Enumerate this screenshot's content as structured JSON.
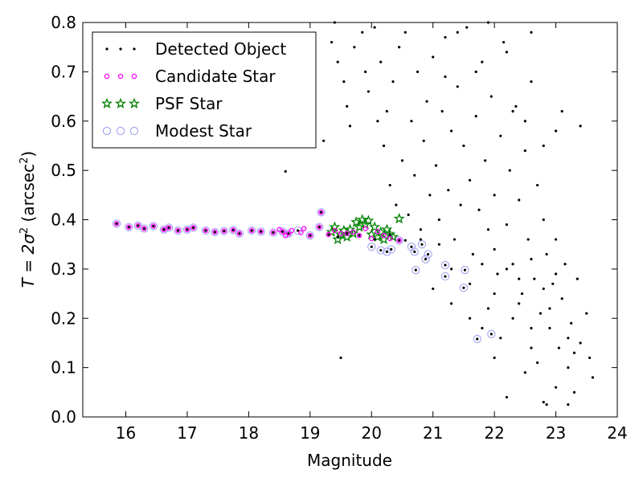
{
  "chart_data": {
    "type": "scatter",
    "xlabel": "Magnitude",
    "ylabel_prefix": "T = 2σ",
    "ylabel_suffix": " (arcsec",
    "ylabel_end": ")",
    "ylabel_superscript": "2",
    "xlim": [
      15.3,
      24.0
    ],
    "ylim": [
      0.0,
      0.8
    ],
    "xticks": [
      16,
      17,
      18,
      19,
      20,
      21,
      22,
      23,
      24
    ],
    "yticks": [
      0.0,
      0.1,
      0.2,
      0.3,
      0.4,
      0.5,
      0.6,
      0.7,
      0.8
    ],
    "ytick_labels": [
      "0.0",
      "0.1",
      "0.2",
      "0.3",
      "0.4",
      "0.5",
      "0.6",
      "0.7",
      "0.8"
    ],
    "grid": false,
    "legend_position": "top-left",
    "series": [
      {
        "name": "Detected Object",
        "marker": "dot",
        "color": "#000000",
        "points": [
          [
            15.85,
            0.392
          ],
          [
            16.05,
            0.385
          ],
          [
            16.2,
            0.388
          ],
          [
            16.3,
            0.382
          ],
          [
            16.45,
            0.387
          ],
          [
            16.62,
            0.38
          ],
          [
            16.7,
            0.384
          ],
          [
            16.85,
            0.378
          ],
          [
            17.0,
            0.38
          ],
          [
            17.1,
            0.384
          ],
          [
            17.3,
            0.378
          ],
          [
            17.45,
            0.375
          ],
          [
            17.6,
            0.377
          ],
          [
            17.75,
            0.379
          ],
          [
            17.85,
            0.372
          ],
          [
            18.05,
            0.378
          ],
          [
            18.2,
            0.376
          ],
          [
            18.4,
            0.374
          ],
          [
            18.55,
            0.376
          ],
          [
            18.65,
            0.372
          ],
          [
            18.8,
            0.378
          ],
          [
            19.0,
            0.368
          ],
          [
            19.15,
            0.385
          ],
          [
            19.18,
            0.415
          ],
          [
            19.3,
            0.37
          ],
          [
            19.45,
            0.365
          ],
          [
            19.6,
            0.372
          ],
          [
            19.8,
            0.368
          ],
          [
            20.0,
            0.345
          ],
          [
            20.05,
            0.36
          ],
          [
            20.15,
            0.338
          ],
          [
            20.25,
            0.335
          ],
          [
            20.32,
            0.34
          ],
          [
            20.45,
            0.358
          ],
          [
            20.55,
            0.358
          ],
          [
            20.65,
            0.345
          ],
          [
            20.7,
            0.335
          ],
          [
            20.72,
            0.298
          ],
          [
            20.82,
            0.35
          ],
          [
            20.88,
            0.32
          ],
          [
            20.92,
            0.33
          ],
          [
            21.2,
            0.308
          ],
          [
            21.2,
            0.285
          ],
          [
            21.5,
            0.262
          ],
          [
            21.52,
            0.298
          ],
          [
            21.72,
            0.158
          ],
          [
            21.95,
            0.168
          ],
          [
            18.6,
            0.498
          ],
          [
            19.5,
            0.12
          ],
          [
            19.22,
            0.56
          ],
          [
            19.4,
            0.8
          ],
          [
            19.35,
            0.76
          ],
          [
            19.45,
            0.72
          ],
          [
            19.55,
            0.68
          ],
          [
            19.6,
            0.63
          ],
          [
            19.65,
            0.59
          ],
          [
            19.72,
            0.75
          ],
          [
            19.85,
            0.78
          ],
          [
            19.9,
            0.7
          ],
          [
            19.95,
            0.66
          ],
          [
            20.05,
            0.79
          ],
          [
            20.1,
            0.6
          ],
          [
            20.15,
            0.72
          ],
          [
            20.2,
            0.55
          ],
          [
            20.25,
            0.62
          ],
          [
            20.3,
            0.47
          ],
          [
            20.35,
            0.68
          ],
          [
            20.4,
            0.43
          ],
          [
            20.45,
            0.75
          ],
          [
            20.5,
            0.52
          ],
          [
            20.55,
            0.78
          ],
          [
            20.6,
            0.41
          ],
          [
            20.65,
            0.6
          ],
          [
            20.7,
            0.49
          ],
          [
            20.75,
            0.7
          ],
          [
            20.8,
            0.38
          ],
          [
            20.85,
            0.56
          ],
          [
            20.9,
            0.64
          ],
          [
            20.95,
            0.45
          ],
          [
            21.0,
            0.73
          ],
          [
            21.05,
            0.51
          ],
          [
            21.1,
            0.4
          ],
          [
            21.15,
            0.62
          ],
          [
            21.2,
            0.77
          ],
          [
            21.25,
            0.46
          ],
          [
            21.3,
            0.58
          ],
          [
            21.35,
            0.36
          ],
          [
            21.4,
            0.67
          ],
          [
            21.45,
            0.43
          ],
          [
            21.5,
            0.55
          ],
          [
            21.55,
            0.79
          ],
          [
            21.6,
            0.48
          ],
          [
            21.65,
            0.33
          ],
          [
            21.7,
            0.61
          ],
          [
            21.75,
            0.42
          ],
          [
            21.8,
            0.72
          ],
          [
            21.85,
            0.52
          ],
          [
            21.9,
            0.38
          ],
          [
            21.95,
            0.65
          ],
          [
            22.0,
            0.45
          ],
          [
            22.05,
            0.29
          ],
          [
            22.1,
            0.57
          ],
          [
            22.15,
            0.76
          ],
          [
            22.2,
            0.39
          ],
          [
            22.25,
            0.5
          ],
          [
            22.3,
            0.31
          ],
          [
            22.35,
            0.63
          ],
          [
            22.4,
            0.44
          ],
          [
            22.45,
            0.25
          ],
          [
            22.5,
            0.54
          ],
          [
            22.55,
            0.36
          ],
          [
            22.6,
            0.68
          ],
          [
            22.65,
            0.28
          ],
          [
            22.7,
            0.47
          ],
          [
            22.75,
            0.21
          ],
          [
            22.8,
            0.4
          ],
          [
            22.85,
            0.33
          ],
          [
            22.9,
            0.18
          ],
          [
            22.95,
            0.27
          ],
          [
            23.0,
            0.36
          ],
          [
            23.05,
            0.14
          ],
          [
            23.1,
            0.24
          ],
          [
            23.15,
            0.31
          ],
          [
            23.2,
            0.1
          ],
          [
            23.25,
            0.19
          ],
          [
            23.3,
            0.05
          ],
          [
            23.35,
            0.28
          ],
          [
            23.4,
            0.15
          ],
          [
            23.5,
            0.21
          ],
          [
            23.55,
            0.12
          ],
          [
            23.6,
            0.08
          ],
          [
            22.0,
            0.12
          ],
          [
            22.2,
            0.04
          ],
          [
            22.5,
            0.09
          ],
          [
            22.8,
            0.03
          ],
          [
            23.0,
            0.06
          ],
          [
            21.9,
            0.22
          ],
          [
            22.1,
            0.16
          ],
          [
            22.3,
            0.2
          ],
          [
            22.6,
            0.14
          ],
          [
            22.7,
            0.11
          ],
          [
            22.9,
            0.22
          ],
          [
            23.2,
            0.025
          ],
          [
            22.85,
            0.025
          ],
          [
            22.3,
            0.62
          ],
          [
            22.5,
            0.6
          ],
          [
            23.0,
            0.58
          ],
          [
            23.4,
            0.59
          ],
          [
            23.1,
            0.62
          ],
          [
            22.8,
            0.55
          ],
          [
            21.1,
            0.35
          ],
          [
            21.3,
            0.3
          ],
          [
            21.6,
            0.27
          ],
          [
            21.8,
            0.31
          ],
          [
            22.0,
            0.34
          ],
          [
            22.2,
            0.3
          ],
          [
            22.4,
            0.28
          ],
          [
            22.6,
            0.32
          ],
          [
            22.8,
            0.26
          ],
          [
            23.0,
            0.29
          ],
          [
            21.2,
            0.69
          ],
          [
            21.7,
            0.7
          ],
          [
            22.2,
            0.74
          ],
          [
            22.6,
            0.78
          ],
          [
            21.4,
            0.78
          ],
          [
            21.9,
            0.8
          ],
          [
            20.3,
            0.37
          ],
          [
            20.8,
            0.36
          ],
          [
            21.0,
            0.26
          ],
          [
            21.3,
            0.23
          ],
          [
            21.6,
            0.2
          ],
          [
            21.8,
            0.18
          ],
          [
            22.0,
            0.25
          ],
          [
            22.4,
            0.23
          ],
          [
            22.6,
            0.18
          ],
          [
            23.2,
            0.16
          ],
          [
            23.3,
            0.13
          ]
        ]
      },
      {
        "name": "Candidate Star",
        "marker": "circle-small",
        "color": "#ff00ff",
        "points": [
          [
            15.85,
            0.392
          ],
          [
            16.05,
            0.385
          ],
          [
            16.2,
            0.388
          ],
          [
            16.3,
            0.382
          ],
          [
            16.45,
            0.387
          ],
          [
            16.62,
            0.38
          ],
          [
            16.7,
            0.384
          ],
          [
            16.85,
            0.378
          ],
          [
            17.0,
            0.38
          ],
          [
            17.1,
            0.384
          ],
          [
            17.3,
            0.378
          ],
          [
            17.45,
            0.375
          ],
          [
            17.6,
            0.377
          ],
          [
            17.75,
            0.379
          ],
          [
            17.85,
            0.372
          ],
          [
            18.05,
            0.378
          ],
          [
            18.2,
            0.376
          ],
          [
            18.4,
            0.374
          ],
          [
            18.5,
            0.38
          ],
          [
            18.55,
            0.376
          ],
          [
            18.6,
            0.368
          ],
          [
            18.65,
            0.372
          ],
          [
            18.7,
            0.378
          ],
          [
            18.85,
            0.374
          ],
          [
            18.9,
            0.382
          ],
          [
            19.0,
            0.368
          ],
          [
            19.15,
            0.385
          ],
          [
            19.18,
            0.415
          ],
          [
            19.3,
            0.37
          ],
          [
            19.4,
            0.378
          ],
          [
            19.5,
            0.372
          ],
          [
            19.6,
            0.372
          ],
          [
            19.7,
            0.375
          ],
          [
            19.8,
            0.368
          ],
          [
            19.9,
            0.382
          ],
          [
            20.0,
            0.362
          ],
          [
            20.1,
            0.376
          ],
          [
            20.2,
            0.368
          ],
          [
            20.3,
            0.362
          ],
          [
            20.45,
            0.358
          ]
        ]
      },
      {
        "name": "PSF Star",
        "marker": "star",
        "color": "#008000",
        "points": [
          [
            19.35,
            0.375
          ],
          [
            19.4,
            0.385
          ],
          [
            19.45,
            0.36
          ],
          [
            19.5,
            0.37
          ],
          [
            19.55,
            0.378
          ],
          [
            19.6,
            0.365
          ],
          [
            19.65,
            0.38
          ],
          [
            19.7,
            0.372
          ],
          [
            19.75,
            0.395
          ],
          [
            19.8,
            0.385
          ],
          [
            19.85,
            0.4
          ],
          [
            19.9,
            0.39
          ],
          [
            19.95,
            0.398
          ],
          [
            20.0,
            0.37
          ],
          [
            20.05,
            0.385
          ],
          [
            20.1,
            0.365
          ],
          [
            20.15,
            0.375
          ],
          [
            20.2,
            0.36
          ],
          [
            20.25,
            0.38
          ],
          [
            20.3,
            0.37
          ],
          [
            20.35,
            0.365
          ],
          [
            20.45,
            0.402
          ]
        ]
      },
      {
        "name": "Modest Star",
        "marker": "circle-large",
        "color": "#9999ee",
        "points": [
          [
            15.85,
            0.392
          ],
          [
            16.05,
            0.385
          ],
          [
            16.2,
            0.388
          ],
          [
            16.3,
            0.382
          ],
          [
            16.45,
            0.387
          ],
          [
            16.62,
            0.38
          ],
          [
            16.7,
            0.384
          ],
          [
            16.85,
            0.378
          ],
          [
            17.0,
            0.38
          ],
          [
            17.1,
            0.384
          ],
          [
            17.3,
            0.378
          ],
          [
            17.45,
            0.375
          ],
          [
            17.6,
            0.377
          ],
          [
            17.75,
            0.379
          ],
          [
            17.85,
            0.372
          ],
          [
            18.05,
            0.378
          ],
          [
            18.2,
            0.376
          ],
          [
            18.4,
            0.374
          ],
          [
            18.55,
            0.376
          ],
          [
            18.65,
            0.372
          ],
          [
            18.8,
            0.378
          ],
          [
            19.0,
            0.368
          ],
          [
            19.15,
            0.385
          ],
          [
            19.18,
            0.415
          ],
          [
            20.0,
            0.345
          ],
          [
            20.15,
            0.338
          ],
          [
            20.25,
            0.335
          ],
          [
            20.32,
            0.34
          ],
          [
            20.45,
            0.358
          ],
          [
            20.65,
            0.345
          ],
          [
            20.7,
            0.335
          ],
          [
            20.72,
            0.298
          ],
          [
            20.82,
            0.35
          ],
          [
            20.88,
            0.32
          ],
          [
            20.92,
            0.33
          ],
          [
            21.2,
            0.308
          ],
          [
            21.2,
            0.285
          ],
          [
            21.5,
            0.262
          ],
          [
            21.52,
            0.298
          ],
          [
            21.72,
            0.158
          ],
          [
            21.95,
            0.168
          ]
        ]
      }
    ]
  }
}
